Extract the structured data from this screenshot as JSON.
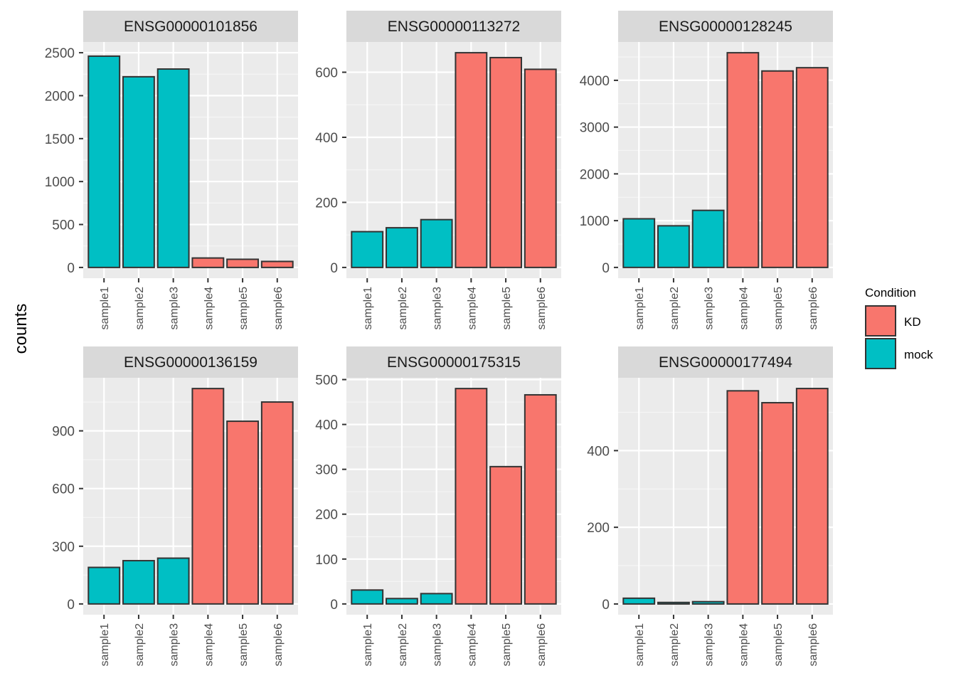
{
  "chart_data": {
    "type": "bar",
    "ylabel": "counts",
    "xlabel": "",
    "categories": [
      "sample1",
      "sample2",
      "sample3",
      "sample4",
      "sample5",
      "sample6"
    ],
    "legend": {
      "title": "Condition",
      "position": "right",
      "entries": [
        {
          "label": "KD",
          "color": "#F8766D"
        },
        {
          "label": "mock",
          "color": "#00BFC4"
        }
      ]
    },
    "conditions": [
      "mock",
      "mock",
      "mock",
      "KD",
      "KD",
      "KD"
    ],
    "grid": true,
    "panels": [
      {
        "gene": "ENSG00000101856",
        "values": [
          2460,
          2220,
          2310,
          110,
          95,
          70
        ],
        "ylim": [
          -125,
          2625
        ],
        "yticks": [
          0,
          500,
          1000,
          1500,
          2000,
          2500
        ]
      },
      {
        "gene": "ENSG00000113272",
        "values": [
          110,
          122,
          147,
          660,
          645,
          609
        ],
        "ylim": [
          -33,
          693
        ],
        "yticks": [
          0,
          200,
          400,
          600
        ]
      },
      {
        "gene": "ENSG00000128245",
        "values": [
          1040,
          890,
          1220,
          4590,
          4200,
          4270
        ],
        "ylim": [
          -230,
          4820
        ],
        "yticks": [
          0,
          1000,
          2000,
          3000,
          4000
        ]
      },
      {
        "gene": "ENSG00000136159",
        "values": [
          190,
          225,
          238,
          1120,
          950,
          1050
        ],
        "ylim": [
          -56,
          1176
        ],
        "yticks": [
          0,
          300,
          600,
          900
        ]
      },
      {
        "gene": "ENSG00000175315",
        "values": [
          31,
          12,
          23,
          480,
          306,
          466
        ],
        "ylim": [
          -24,
          504
        ],
        "yticks": [
          0,
          100,
          200,
          300,
          400,
          500
        ]
      },
      {
        "gene": "ENSG00000177494",
        "values": [
          15,
          4,
          6,
          556,
          525,
          562
        ],
        "ylim": [
          -28,
          590
        ],
        "yticks": [
          0,
          200,
          400
        ]
      }
    ]
  }
}
